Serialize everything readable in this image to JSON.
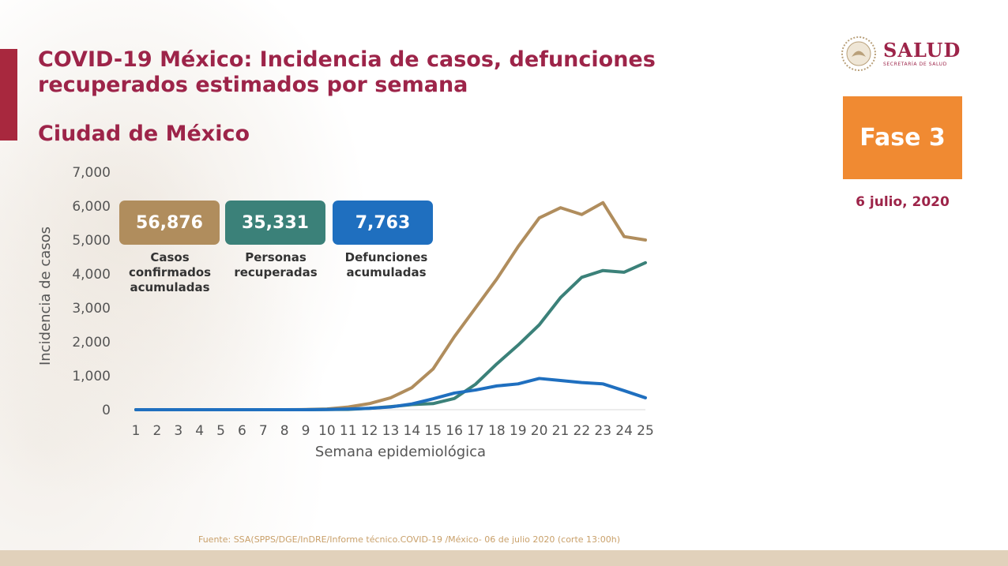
{
  "colors": {
    "title": "#9d2449",
    "accent_bar": "#a8283e",
    "phase_bg": "#f08a32",
    "date": "#9d2449",
    "source": "#c9a06a",
    "bottom_strip": "#e1d1bb",
    "logo": "#9d2449",
    "axis_text": "#555555"
  },
  "header": {
    "title_line1": "COVID-19 México: Incidencia de casos, defunciones",
    "title_line2": "recuperados estimados por semana",
    "subtitle": "Ciudad de México"
  },
  "logo": {
    "main": "SALUD",
    "sub": "SECRETARÍA DE SALUD",
    "icon": "national-seal-icon"
  },
  "phase": {
    "label": "Fase 3"
  },
  "date": "6 julio, 2020",
  "stats": [
    {
      "value": "56,876",
      "label_lines": [
        "Casos",
        "confirmados",
        "acumuladas"
      ],
      "color": "#b08d5d"
    },
    {
      "value": "35,331",
      "label_lines": [
        "Personas",
        "recuperadas"
      ],
      "color": "#3b8179"
    },
    {
      "value": "7,763",
      "label_lines": [
        "Defunciones",
        "acumuladas"
      ],
      "color": "#1f6fbf"
    }
  ],
  "source": "Fuente: SSA(SPPS/DGE/InDRE/Informe técnico.COVID-19 /México- 06 de julio 2020 (corte 13:00h)",
  "chart_data": {
    "type": "line",
    "title": "",
    "xlabel": "Semana epidemiológica",
    "ylabel": "Incidencia de casos",
    "ylim": [
      0,
      7000
    ],
    "yticks": [
      0,
      1000,
      2000,
      3000,
      4000,
      5000,
      6000,
      7000
    ],
    "ytick_labels": [
      "0",
      "1,000",
      "2,000",
      "3,000",
      "4,000",
      "5,000",
      "6,000",
      "7,000"
    ],
    "x": [
      1,
      2,
      3,
      4,
      5,
      6,
      7,
      8,
      9,
      10,
      11,
      12,
      13,
      14,
      15,
      16,
      17,
      18,
      19,
      20,
      21,
      22,
      23,
      24,
      25
    ],
    "grid": false,
    "legend": "none",
    "series": [
      {
        "color": "#b08d5d",
        "values": [
          0,
          0,
          0,
          0,
          0,
          0,
          0,
          0,
          5,
          20,
          80,
          180,
          350,
          650,
          1200,
          2150,
          3000,
          3850,
          4800,
          5650,
          5950,
          5750,
          6100,
          5100,
          5000
        ]
      },
      {
        "color": "#3b8179",
        "values": [
          0,
          0,
          0,
          0,
          0,
          0,
          0,
          0,
          0,
          5,
          10,
          40,
          90,
          150,
          180,
          330,
          750,
          1350,
          1900,
          2500,
          3300,
          3900,
          4100,
          4050,
          4330
        ]
      },
      {
        "color": "#1f6fbf",
        "values": [
          0,
          0,
          0,
          0,
          0,
          0,
          0,
          0,
          0,
          5,
          20,
          40,
          80,
          170,
          320,
          490,
          580,
          700,
          760,
          920,
          860,
          800,
          760,
          560,
          350
        ]
      }
    ]
  }
}
